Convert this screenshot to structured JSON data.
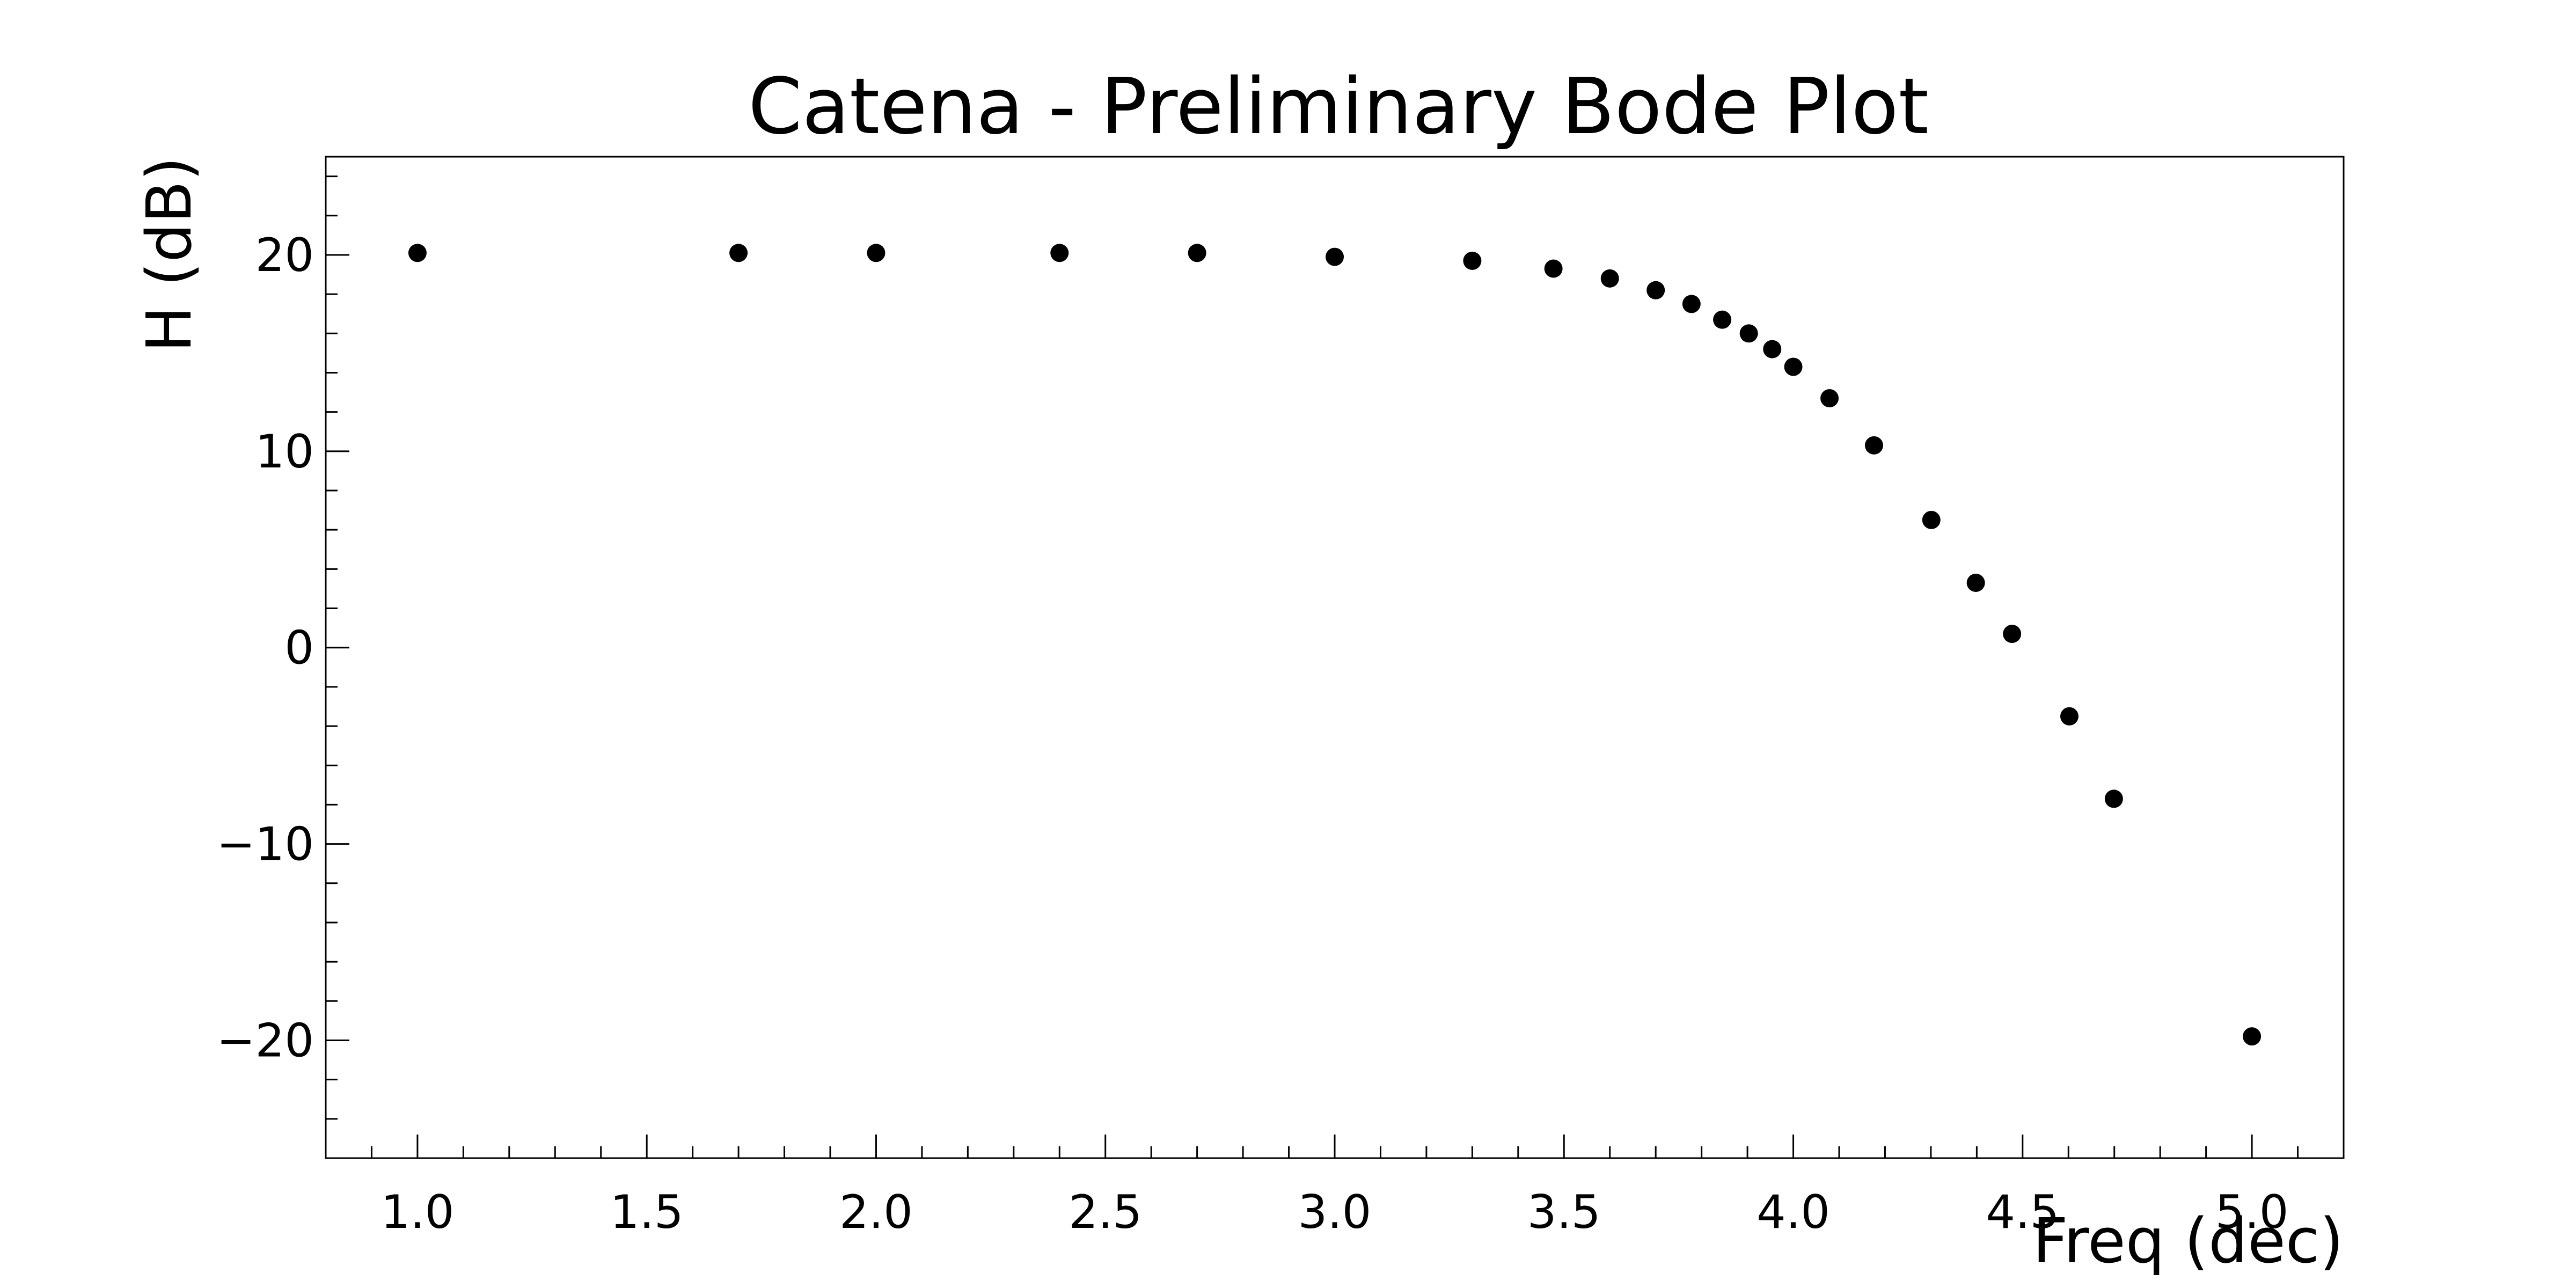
{
  "chart_data": {
    "type": "scatter",
    "title": "Catena - Preliminary Bode Plot",
    "xlabel": "Freq (dec)",
    "ylabel": "H (dB)",
    "xlim": [
      0.8,
      5.2
    ],
    "ylim": [
      -26,
      25
    ],
    "x_major_ticks": [
      1.0,
      1.5,
      2.0,
      2.5,
      3.0,
      3.5,
      4.0,
      4.5,
      5.0
    ],
    "x_tick_labels": [
      "1.0",
      "1.5",
      "2.0",
      "2.5",
      "3.0",
      "3.5",
      "4.0",
      "4.5",
      "5.0"
    ],
    "x_minor_step": 0.1,
    "y_major_ticks": [
      -20,
      -10,
      0,
      10,
      20
    ],
    "y_tick_labels": [
      "−20",
      "−10",
      "0",
      "10",
      "20"
    ],
    "y_minor_step": 2,
    "grid": false,
    "marker_color": "#000000",
    "points": [
      {
        "x": 1.0,
        "y": 20.1
      },
      {
        "x": 1.7,
        "y": 20.1
      },
      {
        "x": 2.0,
        "y": 20.1
      },
      {
        "x": 2.4,
        "y": 20.1
      },
      {
        "x": 2.7,
        "y": 20.1
      },
      {
        "x": 3.0,
        "y": 19.9
      },
      {
        "x": 3.3,
        "y": 19.7
      },
      {
        "x": 3.477,
        "y": 19.3
      },
      {
        "x": 3.6,
        "y": 18.8
      },
      {
        "x": 3.7,
        "y": 18.2
      },
      {
        "x": 3.778,
        "y": 17.5
      },
      {
        "x": 3.845,
        "y": 16.7
      },
      {
        "x": 3.903,
        "y": 16.0
      },
      {
        "x": 3.954,
        "y": 15.2
      },
      {
        "x": 4.0,
        "y": 14.3
      },
      {
        "x": 4.079,
        "y": 12.7
      },
      {
        "x": 4.176,
        "y": 10.3
      },
      {
        "x": 4.301,
        "y": 6.5
      },
      {
        "x": 4.398,
        "y": 3.3
      },
      {
        "x": 4.477,
        "y": 0.7
      },
      {
        "x": 4.602,
        "y": -3.5
      },
      {
        "x": 4.699,
        "y": -7.7
      },
      {
        "x": 5.0,
        "y": -19.8
      }
    ]
  }
}
